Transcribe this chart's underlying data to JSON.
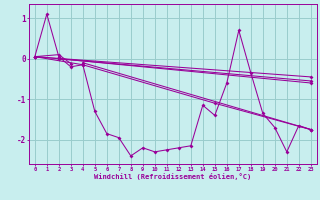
{
  "xlabel": "Windchill (Refroidissement éolien,°C)",
  "background_color": "#c8eeee",
  "grid_color": "#99cccc",
  "line_color": "#990099",
  "x_ticks": [
    0,
    1,
    2,
    3,
    4,
    5,
    6,
    7,
    8,
    9,
    10,
    11,
    12,
    13,
    14,
    15,
    16,
    17,
    18,
    19,
    20,
    21,
    22,
    23
  ],
  "y_ticks": [
    -2,
    -1,
    0,
    1
  ],
  "xlim": [
    -0.5,
    23.5
  ],
  "ylim": [
    -2.6,
    1.35
  ],
  "lines": [
    {
      "x": [
        0,
        1,
        2,
        3,
        4,
        5,
        6,
        7,
        8,
        9,
        10,
        11,
        12,
        13,
        14,
        15,
        16,
        17,
        18,
        19,
        20,
        21,
        22,
        23
      ],
      "y": [
        0.05,
        1.1,
        0.05,
        -0.2,
        -0.15,
        -1.3,
        -1.85,
        -1.95,
        -2.4,
        -2.2,
        -2.3,
        -2.25,
        -2.2,
        -2.15,
        -1.15,
        -1.4,
        -0.6,
        0.7,
        -0.35,
        -1.35,
        -1.7,
        -2.3,
        -1.65,
        -1.75
      ]
    },
    {
      "x": [
        0,
        2,
        3
      ],
      "y": [
        0.05,
        0.1,
        -0.12
      ]
    },
    {
      "x": [
        0,
        4,
        15,
        23
      ],
      "y": [
        0.05,
        -0.15,
        -1.1,
        -1.75
      ]
    },
    {
      "x": [
        0,
        23
      ],
      "y": [
        0.05,
        -0.55
      ]
    },
    {
      "x": [
        0,
        23
      ],
      "y": [
        0.05,
        -0.45
      ]
    },
    {
      "x": [
        2,
        23
      ],
      "y": [
        0.0,
        -0.6
      ]
    },
    {
      "x": [
        4,
        23
      ],
      "y": [
        -0.1,
        -1.75
      ]
    }
  ]
}
